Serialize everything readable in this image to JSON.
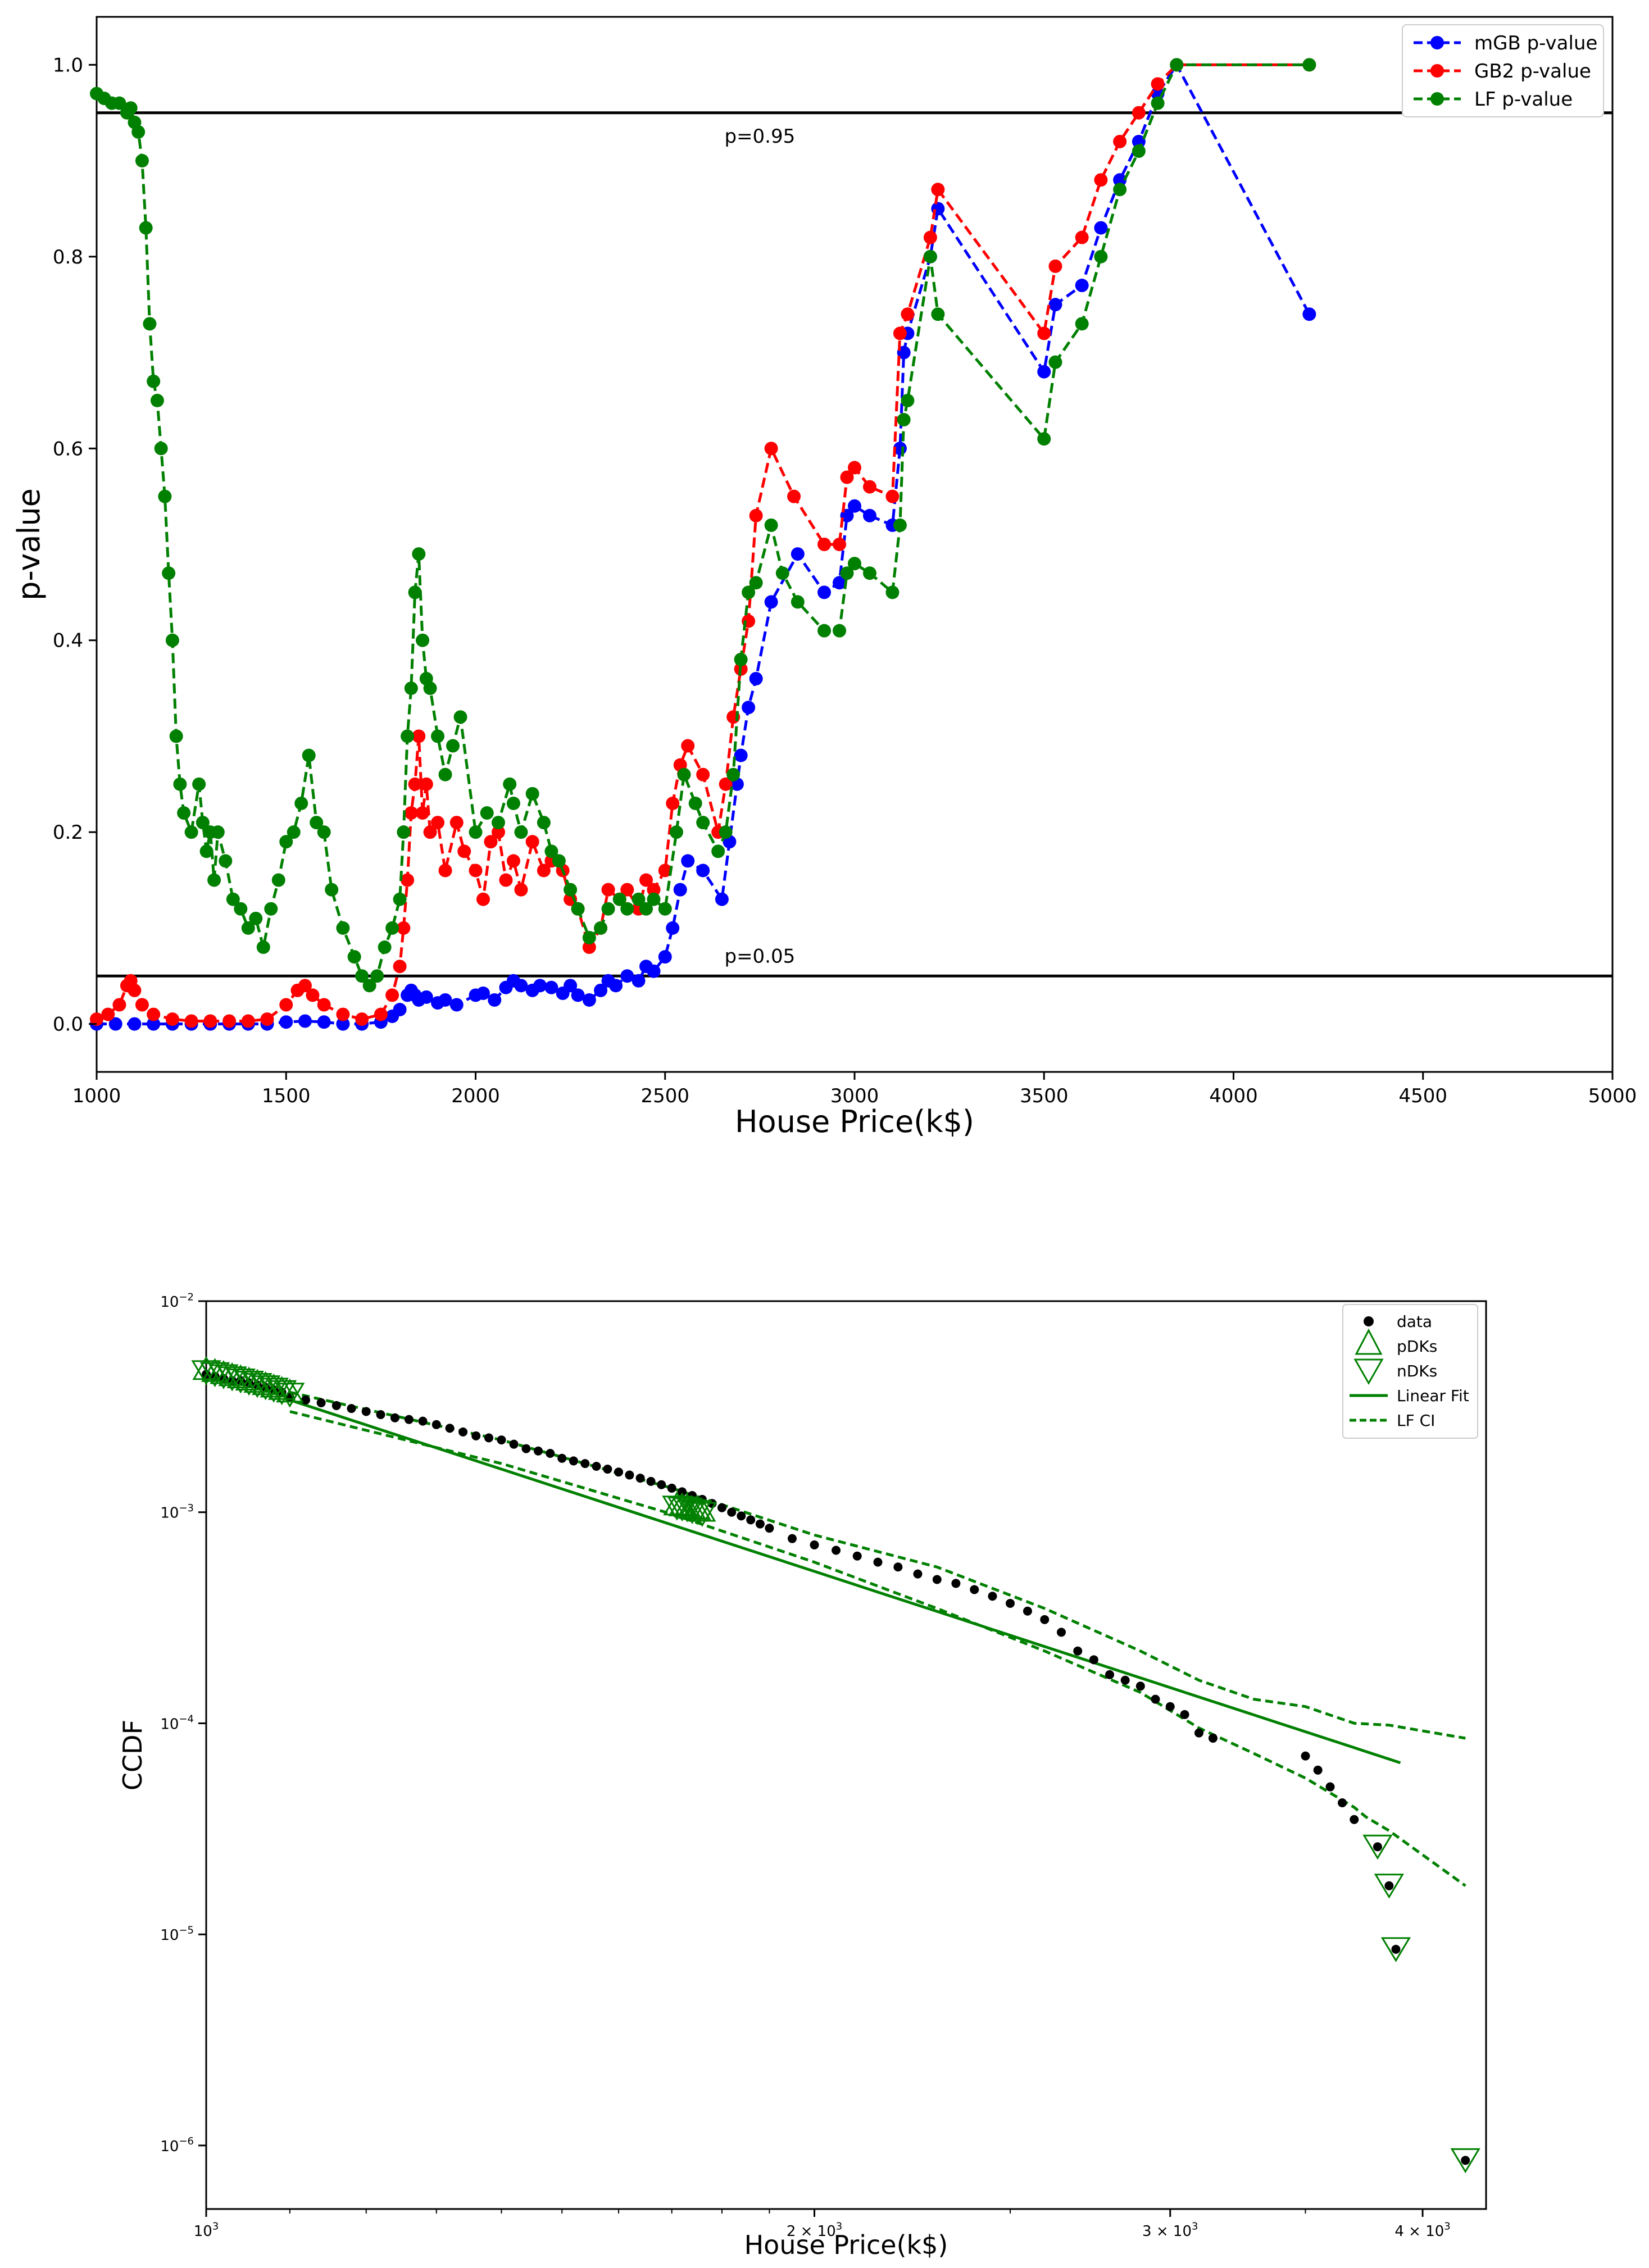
{
  "chart_data": [
    {
      "type": "line",
      "title": "",
      "xlabel": "House Price(k$)",
      "ylabel": "p-value",
      "xlim": [
        1000,
        5000
      ],
      "ylim": [
        -0.05,
        1.05
      ],
      "xticks": [
        1000,
        1500,
        2000,
        2500,
        3000,
        3500,
        4000,
        4500,
        5000
      ],
      "xtick_labels": [
        "1000",
        "1500",
        "2000",
        "2500",
        "3000",
        "3500",
        "4000",
        "4500",
        "5000"
      ],
      "yticks": [
        0.0,
        0.2,
        0.4,
        0.6,
        0.8,
        1.0
      ],
      "ytick_labels": [
        "0.0",
        "0.2",
        "0.4",
        "0.6",
        "0.8",
        "1.0"
      ],
      "legend_position": "top-right",
      "hlines": [
        {
          "y": 0.95,
          "label": "p=0.95",
          "label_x": 2750,
          "label_y": 0.927
        },
        {
          "y": 0.05,
          "label": "p=0.05",
          "label_x": 2750,
          "label_y": 0.072
        }
      ],
      "series": [
        {
          "name": "mGB p-value",
          "color": "#0000ff",
          "x": [
            1000,
            1050,
            1100,
            1150,
            1200,
            1250,
            1300,
            1350,
            1400,
            1450,
            1500,
            1550,
            1600,
            1650,
            1700,
            1750,
            1780,
            1800,
            1820,
            1830,
            1840,
            1850,
            1870,
            1900,
            1920,
            1950,
            2000,
            2020,
            2050,
            2080,
            2100,
            2120,
            2150,
            2170,
            2200,
            2230,
            2250,
            2270,
            2300,
            2330,
            2350,
            2370,
            2400,
            2430,
            2450,
            2470,
            2500,
            2520,
            2540,
            2560,
            2600,
            2650,
            2670,
            2690,
            2700,
            2720,
            2740,
            2780,
            2850,
            2920,
            2960,
            2980,
            3000,
            3040,
            3100,
            3120,
            3130,
            3140,
            3200,
            3220,
            3500,
            3530,
            3600,
            3650,
            3700,
            3750,
            3800,
            3850,
            4200
          ],
          "y": [
            0.0,
            0.0,
            0.0,
            0.0,
            0.0,
            0.0,
            0.0,
            0.0,
            0.0,
            0.0,
            0.002,
            0.003,
            0.002,
            0.0,
            0.0,
            0.002,
            0.008,
            0.015,
            0.03,
            0.035,
            0.03,
            0.025,
            0.028,
            0.022,
            0.025,
            0.02,
            0.03,
            0.032,
            0.025,
            0.038,
            0.045,
            0.04,
            0.035,
            0.04,
            0.038,
            0.032,
            0.04,
            0.03,
            0.025,
            0.035,
            0.045,
            0.04,
            0.05,
            0.045,
            0.06,
            0.055,
            0.07,
            0.1,
            0.14,
            0.17,
            0.16,
            0.13,
            0.19,
            0.25,
            0.28,
            0.33,
            0.36,
            0.44,
            0.49,
            0.45,
            0.46,
            0.53,
            0.54,
            0.53,
            0.52,
            0.6,
            0.7,
            0.72,
            0.8,
            0.85,
            0.68,
            0.75,
            0.77,
            0.83,
            0.88,
            0.92,
            0.97,
            1.0,
            0.74
          ]
        },
        {
          "name": "GB2 p-value",
          "color": "#ff0000",
          "x": [
            1000,
            1030,
            1060,
            1080,
            1090,
            1100,
            1120,
            1150,
            1200,
            1250,
            1300,
            1350,
            1400,
            1450,
            1500,
            1530,
            1550,
            1570,
            1600,
            1650,
            1700,
            1750,
            1780,
            1800,
            1810,
            1820,
            1830,
            1840,
            1850,
            1860,
            1870,
            1880,
            1900,
            1920,
            1950,
            1970,
            2000,
            2020,
            2040,
            2060,
            2080,
            2100,
            2120,
            2150,
            2180,
            2200,
            2230,
            2250,
            2270,
            2300,
            2330,
            2350,
            2380,
            2400,
            2430,
            2450,
            2470,
            2500,
            2520,
            2540,
            2560,
            2600,
            2640,
            2660,
            2680,
            2700,
            2720,
            2740,
            2780,
            2840,
            2920,
            2960,
            2980,
            3000,
            3040,
            3100,
            3120,
            3140,
            3200,
            3220,
            3500,
            3530,
            3600,
            3650,
            3700,
            3750,
            3800,
            3850,
            4200
          ],
          "y": [
            0.005,
            0.01,
            0.02,
            0.04,
            0.045,
            0.035,
            0.02,
            0.01,
            0.005,
            0.003,
            0.003,
            0.003,
            0.003,
            0.005,
            0.02,
            0.035,
            0.04,
            0.03,
            0.02,
            0.01,
            0.005,
            0.01,
            0.03,
            0.06,
            0.1,
            0.15,
            0.22,
            0.25,
            0.3,
            0.22,
            0.25,
            0.2,
            0.21,
            0.16,
            0.21,
            0.18,
            0.16,
            0.13,
            0.19,
            0.2,
            0.15,
            0.17,
            0.14,
            0.19,
            0.16,
            0.17,
            0.16,
            0.13,
            0.12,
            0.08,
            0.1,
            0.14,
            0.13,
            0.14,
            0.12,
            0.15,
            0.14,
            0.16,
            0.23,
            0.27,
            0.29,
            0.26,
            0.2,
            0.25,
            0.32,
            0.37,
            0.42,
            0.53,
            0.6,
            0.55,
            0.5,
            0.5,
            0.57,
            0.58,
            0.56,
            0.55,
            0.72,
            0.74,
            0.82,
            0.87,
            0.72,
            0.79,
            0.82,
            0.88,
            0.92,
            0.95,
            0.98,
            1.0,
            1.0
          ]
        },
        {
          "name": "LF p-value",
          "color": "#008000",
          "x": [
            1000,
            1020,
            1040,
            1060,
            1080,
            1090,
            1100,
            1110,
            1120,
            1130,
            1140,
            1150,
            1160,
            1170,
            1180,
            1190,
            1200,
            1210,
            1220,
            1230,
            1250,
            1270,
            1280,
            1290,
            1300,
            1310,
            1320,
            1340,
            1360,
            1380,
            1400,
            1420,
            1440,
            1460,
            1480,
            1500,
            1520,
            1540,
            1560,
            1580,
            1600,
            1620,
            1650,
            1680,
            1700,
            1720,
            1740,
            1760,
            1780,
            1800,
            1810,
            1820,
            1830,
            1840,
            1850,
            1860,
            1870,
            1880,
            1900,
            1920,
            1940,
            1960,
            2000,
            2030,
            2060,
            2090,
            2100,
            2120,
            2150,
            2180,
            2200,
            2220,
            2250,
            2270,
            2300,
            2330,
            2350,
            2380,
            2400,
            2430,
            2450,
            2470,
            2500,
            2530,
            2550,
            2580,
            2600,
            2640,
            2660,
            2680,
            2700,
            2720,
            2740,
            2780,
            2810,
            2850,
            2920,
            2960,
            2980,
            3000,
            3040,
            3100,
            3120,
            3130,
            3140,
            3200,
            3220,
            3500,
            3530,
            3600,
            3650,
            3700,
            3750,
            3800,
            3850,
            4200
          ],
          "y": [
            0.97,
            0.965,
            0.96,
            0.96,
            0.95,
            0.955,
            0.94,
            0.93,
            0.9,
            0.83,
            0.73,
            0.67,
            0.65,
            0.6,
            0.55,
            0.47,
            0.4,
            0.3,
            0.25,
            0.22,
            0.2,
            0.25,
            0.21,
            0.18,
            0.2,
            0.15,
            0.2,
            0.17,
            0.13,
            0.12,
            0.1,
            0.11,
            0.08,
            0.12,
            0.15,
            0.19,
            0.2,
            0.23,
            0.28,
            0.21,
            0.2,
            0.14,
            0.1,
            0.07,
            0.05,
            0.04,
            0.05,
            0.08,
            0.1,
            0.13,
            0.2,
            0.3,
            0.35,
            0.45,
            0.49,
            0.4,
            0.36,
            0.35,
            0.3,
            0.26,
            0.29,
            0.32,
            0.2,
            0.22,
            0.21,
            0.25,
            0.23,
            0.2,
            0.24,
            0.21,
            0.18,
            0.17,
            0.14,
            0.12,
            0.09,
            0.1,
            0.12,
            0.13,
            0.12,
            0.13,
            0.12,
            0.13,
            0.12,
            0.2,
            0.26,
            0.23,
            0.21,
            0.18,
            0.2,
            0.26,
            0.38,
            0.45,
            0.46,
            0.52,
            0.47,
            0.44,
            0.41,
            0.41,
            0.47,
            0.48,
            0.47,
            0.45,
            0.52,
            0.63,
            0.65,
            0.8,
            0.74,
            0.61,
            0.69,
            0.73,
            0.8,
            0.87,
            0.91,
            0.96,
            1.0,
            1.0
          ]
        }
      ]
    },
    {
      "type": "scatter",
      "title": "",
      "xlabel": "House Price(k$)",
      "ylabel": "CCDF",
      "xscale": "log",
      "yscale": "log",
      "xlim": [
        1000,
        4300
      ],
      "ylim": [
        5e-07,
        0.01
      ],
      "xticks": [
        1000,
        2000,
        3000,
        4000
      ],
      "xtick_labels": [
        {
          "base": "10",
          "exp": "3"
        },
        {
          "base": "2 × 10",
          "exp": "3"
        },
        {
          "base": "3 × 10",
          "exp": "3"
        },
        {
          "base": "4 × 10",
          "exp": "3"
        }
      ],
      "yticks": [
        1e-06,
        1e-05,
        0.0001,
        0.001,
        0.01
      ],
      "ytick_labels": [
        {
          "base": "10",
          "exp": "−6"
        },
        {
          "base": "10",
          "exp": "−5"
        },
        {
          "base": "10",
          "exp": "−4"
        },
        {
          "base": "10",
          "exp": "−3"
        },
        {
          "base": "10",
          "exp": "−2"
        }
      ],
      "legend_position": "top-right",
      "legend": [
        "data",
        "pDKs",
        "nDKs",
        "Linear Fit",
        "LF CI"
      ],
      "data_points": {
        "x": [
          1000,
          1010,
          1020,
          1030,
          1040,
          1050,
          1060,
          1070,
          1080,
          1090,
          1100,
          1120,
          1140,
          1160,
          1180,
          1200,
          1220,
          1240,
          1260,
          1280,
          1300,
          1320,
          1340,
          1360,
          1380,
          1400,
          1420,
          1440,
          1460,
          1480,
          1500,
          1520,
          1540,
          1560,
          1580,
          1600,
          1620,
          1640,
          1660,
          1680,
          1700,
          1720,
          1740,
          1760,
          1780,
          1800,
          1820,
          1840,
          1860,
          1880,
          1900,
          1950,
          2000,
          2050,
          2100,
          2150,
          2200,
          2250,
          2300,
          2350,
          2400,
          2450,
          2500,
          2550,
          2600,
          2650,
          2700,
          2750,
          2800,
          2850,
          2900,
          2950,
          3000,
          3050,
          3100,
          3150,
          3500,
          3550,
          3600,
          3650,
          3700,
          3800,
          3850,
          3880,
          4200
        ],
        "y": [
          0.0045,
          0.0044,
          0.0043,
          0.0042,
          0.0042,
          0.0041,
          0.004,
          0.0039,
          0.0038,
          0.0037,
          0.0035,
          0.0034,
          0.0033,
          0.0032,
          0.0031,
          0.003,
          0.0029,
          0.0028,
          0.00275,
          0.0027,
          0.0026,
          0.0025,
          0.0024,
          0.0023,
          0.00225,
          0.0022,
          0.0021,
          0.002,
          0.00195,
          0.0019,
          0.0018,
          0.00175,
          0.0017,
          0.00165,
          0.0016,
          0.00155,
          0.0015,
          0.00145,
          0.0014,
          0.00135,
          0.0013,
          0.00125,
          0.0012,
          0.00115,
          0.0011,
          0.00105,
          0.001,
          0.00096,
          0.00092,
          0.00088,
          0.00084,
          0.00075,
          0.0007,
          0.00066,
          0.00062,
          0.00058,
          0.00055,
          0.00051,
          0.00048,
          0.00046,
          0.00043,
          0.0004,
          0.00037,
          0.00034,
          0.00031,
          0.00027,
          0.00022,
          0.0002,
          0.00017,
          0.00016,
          0.00015,
          0.00013,
          0.00012,
          0.00011,
          9e-05,
          8.5e-05,
          7e-05,
          6e-05,
          5e-05,
          4.2e-05,
          3.5e-05,
          2.6e-05,
          1.7e-05,
          8.5e-06,
          8.5e-07
        ]
      },
      "pDKs": {
        "x": [
          1000,
          1010,
          1020,
          1030,
          1040,
          1050,
          1060,
          1070,
          1080,
          1090,
          1100,
          1710,
          1720,
          1730,
          1740,
          1750,
          1760
        ],
        "y": [
          0.0046,
          0.0045,
          0.0044,
          0.0043,
          0.0042,
          0.0041,
          0.004,
          0.0039,
          0.0038,
          0.0037,
          0.0036,
          0.00105,
          0.00104,
          0.00103,
          0.00101,
          0.001,
          0.00098
        ]
      },
      "nDKs": {
        "x": [
          1000,
          1010,
          1020,
          1030,
          1040,
          1050,
          1060,
          1070,
          1080,
          1090,
          1100,
          1710,
          1720,
          1730,
          1740,
          1750,
          1760,
          3800,
          3850,
          3880,
          4200
        ],
        "y": [
          0.0046,
          0.0045,
          0.0044,
          0.0043,
          0.0042,
          0.0041,
          0.004,
          0.0039,
          0.0038,
          0.0037,
          0.0036,
          0.00105,
          0.00104,
          0.00103,
          0.00101,
          0.001,
          0.00098,
          2.6e-05,
          1.7e-05,
          8.5e-06,
          8.5e-07
        ]
      },
      "linear_fit": {
        "x": [
          1100,
          3900
        ],
        "y": [
          0.0034,
          6.5e-05
        ]
      },
      "lf_ci_upper": {
        "x": [
          1100,
          1400,
          1700,
          2000,
          2300,
          2600,
          2900,
          3100,
          3300,
          3500,
          3700,
          3850,
          4200
        ],
        "y": [
          0.0037,
          0.0022,
          0.0013,
          0.00078,
          0.00055,
          0.00035,
          0.00022,
          0.00016,
          0.00013,
          0.00012,
          0.0001,
          9.8e-05,
          8.5e-05
        ]
      },
      "lf_ci_lower": {
        "x": [
          1100,
          1400,
          1700,
          2000,
          2300,
          2600,
          2900,
          3100,
          3300,
          3500,
          3700,
          3750,
          3850,
          4200
        ],
        "y": [
          0.003,
          0.0017,
          0.00098,
          0.00058,
          0.00035,
          0.00022,
          0.00014,
          9.5e-05,
          7.2e-05,
          5.5e-05,
          4e-05,
          3.6e-05,
          3.1e-05,
          1.7e-05
        ]
      }
    }
  ]
}
